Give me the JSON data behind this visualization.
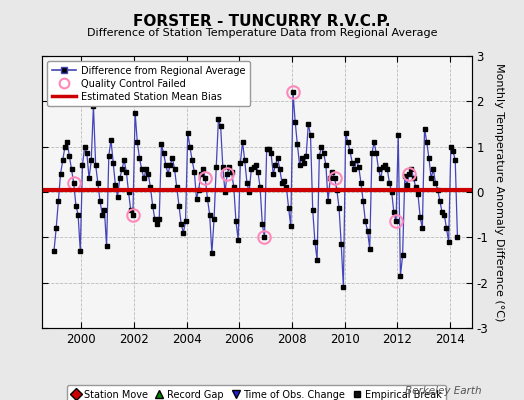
{
  "title": "FORSTER - TUNCURRY R.V.C.P.",
  "subtitle": "Difference of Station Temperature Data from Regional Average",
  "ylabel": "Monthly Temperature Anomaly Difference (°C)",
  "bias_value": 0.05,
  "xlim": [
    1998.5,
    2014.83
  ],
  "ylim": [
    -3,
    3
  ],
  "yticks": [
    -3,
    -2,
    -1,
    0,
    1,
    2,
    3
  ],
  "xticks": [
    2000,
    2002,
    2004,
    2006,
    2008,
    2010,
    2012,
    2014
  ],
  "bg_color": "#e8e8e8",
  "plot_bg_color": "#f5f5f5",
  "line_color": "#4444bb",
  "marker_color": "#000000",
  "bias_color": "#cc0000",
  "qc_color": "#ff88bb",
  "watermark": "Berkeley Earth",
  "times": [
    1998.958,
    1999.042,
    1999.125,
    1999.208,
    1999.292,
    1999.375,
    1999.458,
    1999.542,
    1999.625,
    1999.708,
    1999.792,
    1999.875,
    1999.958,
    2000.042,
    2000.125,
    2000.208,
    2000.292,
    2000.375,
    2000.458,
    2000.542,
    2000.625,
    2000.708,
    2000.792,
    2000.875,
    2000.958,
    2001.042,
    2001.125,
    2001.208,
    2001.292,
    2001.375,
    2001.458,
    2001.542,
    2001.625,
    2001.708,
    2001.792,
    2001.875,
    2001.958,
    2002.042,
    2002.125,
    2002.208,
    2002.292,
    2002.375,
    2002.458,
    2002.542,
    2002.625,
    2002.708,
    2002.792,
    2002.875,
    2002.958,
    2003.042,
    2003.125,
    2003.208,
    2003.292,
    2003.375,
    2003.458,
    2003.542,
    2003.625,
    2003.708,
    2003.792,
    2003.875,
    2003.958,
    2004.042,
    2004.125,
    2004.208,
    2004.292,
    2004.375,
    2004.458,
    2004.542,
    2004.625,
    2004.708,
    2004.792,
    2004.875,
    2004.958,
    2005.042,
    2005.125,
    2005.208,
    2005.292,
    2005.375,
    2005.458,
    2005.542,
    2005.625,
    2005.708,
    2005.792,
    2005.875,
    2005.958,
    2006.042,
    2006.125,
    2006.208,
    2006.292,
    2006.375,
    2006.458,
    2006.542,
    2006.625,
    2006.708,
    2006.792,
    2006.875,
    2006.958,
    2007.042,
    2007.125,
    2007.208,
    2007.292,
    2007.375,
    2007.458,
    2007.542,
    2007.625,
    2007.708,
    2007.792,
    2007.875,
    2007.958,
    2008.042,
    2008.125,
    2008.208,
    2008.292,
    2008.375,
    2008.458,
    2008.542,
    2008.625,
    2008.708,
    2008.792,
    2008.875,
    2008.958,
    2009.042,
    2009.125,
    2009.208,
    2009.292,
    2009.375,
    2009.458,
    2009.542,
    2009.625,
    2009.708,
    2009.792,
    2009.875,
    2009.958,
    2010.042,
    2010.125,
    2010.208,
    2010.292,
    2010.375,
    2010.458,
    2010.542,
    2010.625,
    2010.708,
    2010.792,
    2010.875,
    2010.958,
    2011.042,
    2011.125,
    2011.208,
    2011.292,
    2011.375,
    2011.458,
    2011.542,
    2011.625,
    2011.708,
    2011.792,
    2011.875,
    2011.958,
    2012.042,
    2012.125,
    2012.208,
    2012.292,
    2012.375,
    2012.458,
    2012.542,
    2012.625,
    2012.708,
    2012.792,
    2012.875,
    2012.958,
    2013.042,
    2013.125,
    2013.208,
    2013.292,
    2013.375,
    2013.458,
    2013.542,
    2013.625,
    2013.708,
    2013.792,
    2013.875,
    2013.958,
    2014.042,
    2014.125,
    2014.208,
    2014.292
  ],
  "values": [
    -1.3,
    -0.8,
    -0.2,
    0.4,
    0.7,
    1.0,
    1.1,
    0.8,
    0.5,
    0.2,
    -0.3,
    -0.5,
    -1.3,
    0.6,
    1.0,
    0.85,
    0.3,
    0.7,
    1.9,
    0.6,
    0.2,
    -0.2,
    -0.5,
    -0.4,
    -1.2,
    0.8,
    1.15,
    0.65,
    0.15,
    -0.1,
    0.3,
    0.5,
    0.7,
    0.45,
    0.0,
    -0.4,
    -0.5,
    1.75,
    1.1,
    0.75,
    0.5,
    0.3,
    0.5,
    0.4,
    0.1,
    -0.3,
    -0.6,
    -0.7,
    -0.6,
    1.05,
    0.85,
    0.6,
    0.4,
    0.6,
    0.75,
    0.5,
    0.1,
    -0.3,
    -0.7,
    -0.9,
    -0.65,
    1.3,
    1.0,
    0.7,
    0.45,
    -0.15,
    0.05,
    0.4,
    0.5,
    0.3,
    -0.15,
    -0.5,
    -1.35,
    -0.6,
    0.55,
    1.6,
    1.45,
    0.55,
    0.0,
    0.4,
    0.55,
    0.45,
    0.1,
    -0.65,
    -1.05,
    0.65,
    1.1,
    0.7,
    0.2,
    0.0,
    0.5,
    0.55,
    0.6,
    0.45,
    0.1,
    -0.7,
    -1.0,
    0.95,
    0.95,
    0.85,
    0.4,
    0.6,
    0.75,
    0.5,
    0.2,
    0.25,
    0.1,
    -0.35,
    -0.75,
    2.2,
    1.55,
    1.05,
    0.6,
    0.75,
    0.65,
    0.8,
    1.5,
    1.25,
    -0.4,
    -1.1,
    -1.5,
    0.8,
    1.0,
    0.85,
    0.6,
    -0.2,
    0.3,
    0.45,
    0.3,
    0.05,
    -0.35,
    -1.15,
    -2.1,
    1.3,
    1.1,
    0.9,
    0.65,
    0.5,
    0.7,
    0.55,
    0.2,
    -0.2,
    -0.65,
    -0.85,
    -1.25,
    0.85,
    1.1,
    0.85,
    0.5,
    0.3,
    0.55,
    0.6,
    0.5,
    0.2,
    0.0,
    -0.45,
    -0.65,
    1.25,
    -1.85,
    -1.4,
    0.35,
    0.15,
    0.4,
    0.5,
    0.3,
    0.1,
    -0.05,
    -0.55,
    -0.8,
    1.4,
    1.1,
    0.75,
    0.3,
    0.5,
    0.2,
    0.05,
    -0.2,
    -0.45,
    -0.5,
    -0.8,
    -1.1,
    1.0,
    0.9,
    0.7,
    -1.0
  ],
  "qc_failed_indices": [
    9,
    36,
    69,
    79,
    96,
    109,
    128,
    156,
    162
  ]
}
